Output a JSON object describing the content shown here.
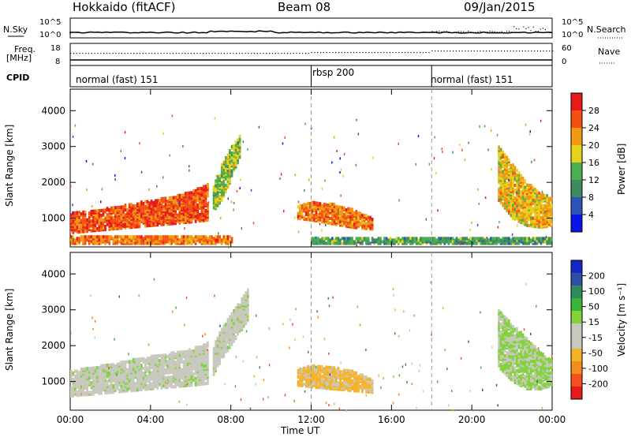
{
  "header": {
    "station": "Hokkaido (fitACF)",
    "beam": "Beam 08",
    "date": "09/Jan/2015"
  },
  "summary_panels": {
    "nsky_label": "N.Sky",
    "nsearch_label": "N.Search",
    "freq_label": "Freq.",
    "freq_unit": "[MHz]",
    "nave_label": "Nave",
    "cpid_label": "CPID",
    "noise_ticks_left": [
      "10^5",
      "10^0"
    ],
    "noise_ticks_right": [
      "10^5",
      "10^0"
    ],
    "freq_ticks": [
      "18",
      "8"
    ],
    "nave_ticks": [
      "60",
      "0"
    ]
  },
  "cpid_segments": [
    {
      "label": "normal (fast) 151",
      "start_hour": 0
    },
    {
      "label": "rbsp 200",
      "start_hour": 12
    },
    {
      "label": "normal (fast) 151",
      "start_hour": 18
    }
  ],
  "colors": {
    "power_scale": [
      "#0a14e6",
      "#2d52b8",
      "#3d8c5f",
      "#4caf4f",
      "#e6d21a",
      "#f09a14",
      "#f55014",
      "#e61a1a"
    ],
    "velocity_scale": [
      "#e61a1a",
      "#f5501e",
      "#f58c1e",
      "#f5b428",
      "#c8c8be",
      "#c8c8be",
      "#82d23c",
      "#3cb43c",
      "#2d8c5a",
      "#2d50a5",
      "#1428c8"
    ]
  },
  "chart_data": [
    {
      "type": "heatmap",
      "title": "",
      "ylabel": "Slant Range [km]",
      "xlabel": "Time UT",
      "x_ticks": [
        "00:00",
        "04:00",
        "08:00",
        "12:00",
        "16:00",
        "20:00",
        "00:00"
      ],
      "y_ticks": [
        "1000",
        "2000",
        "3000",
        "4000"
      ],
      "ylim": [
        200,
        4600
      ],
      "xlim_hours": [
        0,
        24
      ],
      "colorbar_label": "Power [dB]",
      "colorbar_ticks": [
        "4",
        "8",
        "12",
        "16",
        "20",
        "24",
        "28"
      ],
      "colorbar_range": [
        0,
        32
      ],
      "regions": [
        {
          "name": "morning-band",
          "t": [
            0.0,
            1.0,
            2.0,
            3.0,
            4.0,
            5.0,
            6.0,
            6.8
          ],
          "r_low": [
            600,
            650,
            700,
            750,
            800,
            850,
            900,
            950
          ],
          "r_high": [
            1150,
            1200,
            1300,
            1400,
            1500,
            1600,
            1750,
            1950
          ],
          "value": 26
        },
        {
          "name": "near-range-0-8",
          "t": [
            0.0,
            8.0
          ],
          "r_low": [
            300,
            300
          ],
          "r_high": [
            500,
            500
          ],
          "value": 24
        },
        {
          "name": "plume-0730",
          "t": [
            7.1,
            7.5,
            8.0,
            8.4
          ],
          "r_low": [
            1200,
            1500,
            2100,
            2700
          ],
          "r_high": [
            1900,
            2500,
            3000,
            3300
          ],
          "value": 16
        },
        {
          "name": "noon-arc",
          "t": [
            11.3,
            12.0,
            13.0,
            14.0,
            15.0
          ],
          "r_low": [
            1000,
            950,
            850,
            750,
            700
          ],
          "r_high": [
            1350,
            1450,
            1400,
            1250,
            1000
          ],
          "value": 24
        },
        {
          "name": "evening-streaks",
          "t": [
            21.3,
            22.0,
            22.7,
            23.4,
            24.0
          ],
          "r_low": [
            1500,
            1000,
            800,
            750,
            800
          ],
          "r_high": [
            3000,
            2500,
            2000,
            1700,
            1600
          ],
          "value": 20
        },
        {
          "name": "near-range-12-24",
          "t": [
            12.0,
            24.0
          ],
          "r_low": [
            300,
            300
          ],
          "r_high": [
            450,
            450
          ],
          "value": 12
        }
      ]
    },
    {
      "type": "heatmap",
      "title": "",
      "ylabel": "Slant Range [km]",
      "xlabel": "Time UT",
      "x_ticks": [
        "00:00",
        "04:00",
        "08:00",
        "12:00",
        "16:00",
        "20:00",
        "00:00"
      ],
      "y_ticks": [
        "1000",
        "2000",
        "3000",
        "4000"
      ],
      "ylim": [
        200,
        4600
      ],
      "xlim_hours": [
        0,
        24
      ],
      "colorbar_label": "Velocity [m s⁻¹]",
      "colorbar_ticks": [
        "200",
        "100",
        "50",
        "15",
        "-15",
        "-50",
        "-100",
        "-200"
      ],
      "colorbar_range": [
        -250,
        250
      ],
      "regions": [
        {
          "name": "morning-ground-scatter",
          "t": [
            0.0,
            2.0,
            4.0,
            6.0,
            6.8
          ],
          "r_low": [
            600,
            700,
            800,
            900,
            950
          ],
          "r_high": [
            1300,
            1500,
            1700,
            1900,
            2100
          ],
          "value": 0
        },
        {
          "name": "plume-0730",
          "t": [
            7.1,
            7.6,
            8.2,
            8.8
          ],
          "r_low": [
            1200,
            1700,
            2200,
            2700
          ],
          "r_high": [
            2000,
            2600,
            3100,
            3600
          ],
          "value": 0
        },
        {
          "name": "noon-flow",
          "t": [
            11.3,
            12.0,
            13.0,
            14.0,
            15.0
          ],
          "r_low": [
            900,
            850,
            800,
            750,
            700
          ],
          "r_high": [
            1350,
            1450,
            1400,
            1300,
            1050
          ],
          "value": -80
        },
        {
          "name": "evening-flow",
          "t": [
            21.3,
            22.0,
            22.7,
            23.4,
            24.0
          ],
          "r_low": [
            1400,
            1000,
            800,
            800,
            900
          ],
          "r_high": [
            3000,
            2600,
            2200,
            1800,
            1600
          ],
          "value": 30
        }
      ]
    }
  ]
}
